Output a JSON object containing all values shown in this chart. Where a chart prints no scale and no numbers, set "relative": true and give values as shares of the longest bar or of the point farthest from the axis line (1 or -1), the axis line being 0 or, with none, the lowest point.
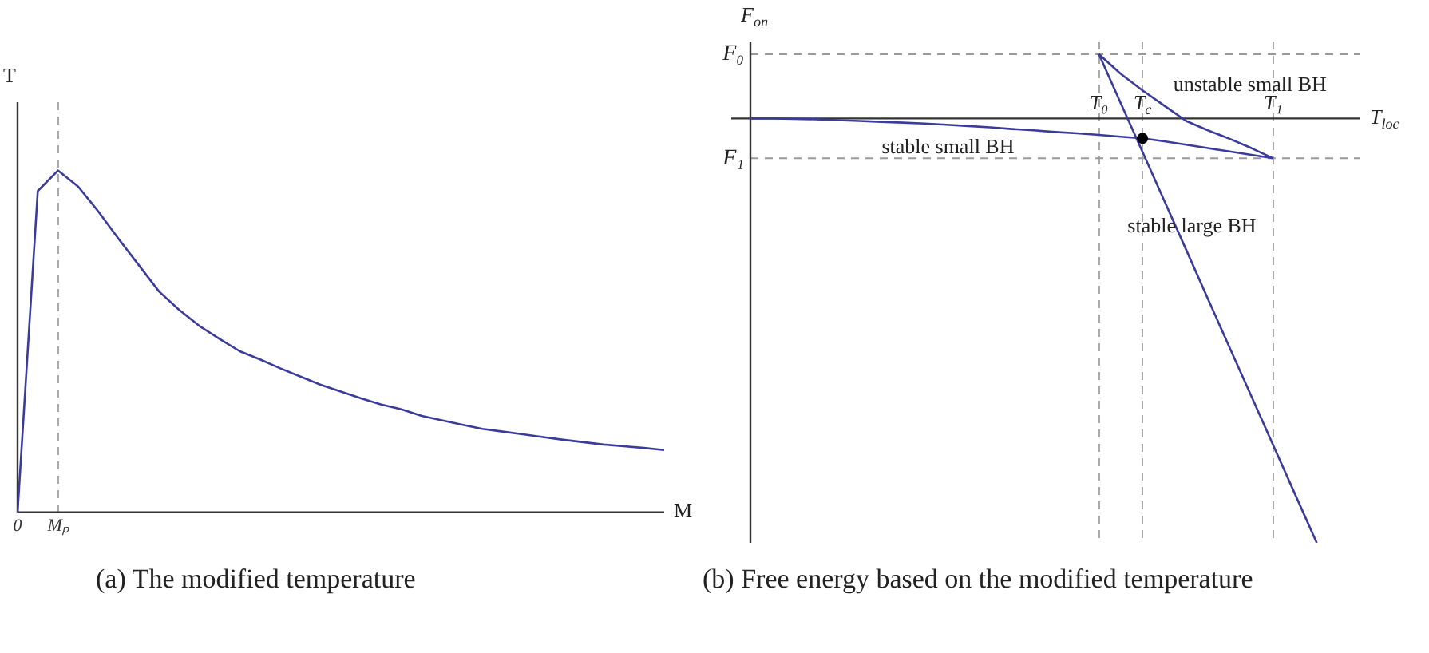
{
  "chart_data": [
    {
      "type": "line",
      "relative": true,
      "xlabel": "M",
      "ylabel": "T",
      "categories": [
        "0",
        null,
        "Mₚ",
        null,
        null,
        null,
        null,
        null,
        null,
        null,
        null,
        null,
        null,
        null,
        null,
        null,
        null,
        null,
        null,
        null,
        null,
        null,
        null,
        null,
        null,
        null,
        null,
        null,
        null,
        null,
        null,
        null,
        null
      ],
      "tick_labels": "x",
      "grid": "x",
      "legend": false,
      "marker": "none",
      "line_style": "solid",
      "series": [
        {
          "color": "#3b3b9c",
          "values": [
            0,
            0.94,
            1,
            0.953,
            0.88,
            0.8,
            0.723,
            0.646,
            0.592,
            0.545,
            0.507,
            0.471,
            0.447,
            0.421,
            0.397,
            0.373,
            0.353,
            0.333,
            0.315,
            0.301,
            0.282,
            0.269,
            0.256,
            0.244,
            0.236,
            0.228,
            0.22,
            0.212,
            0.205,
            0.198,
            0.193,
            0.188,
            0.182
          ]
        }
      ],
      "annotations": [
        "(a) The modified temperature"
      ]
    },
    {
      "type": "line",
      "relative": true,
      "xlabel": "T$_{loc}$",
      "ylabel": "F$_{on}$",
      "categories": [
        null,
        null,
        null,
        null,
        null,
        null,
        null,
        null,
        null,
        null,
        null,
        null,
        null,
        null,
        null,
        null,
        "T₀",
        null,
        "T$_{c}$",
        null,
        null,
        null,
        null,
        null,
        "T₁",
        null,
        null,
        null,
        null
      ],
      "tick_labels": "x",
      "grid": "x",
      "legend": false,
      "marker": "none",
      "line_style": "solid",
      "series": [
        {
          "name": "stable small BH",
          "color": "#3b3b9c",
          "values": [
            0,
            0,
            -0.001,
            -0.002,
            -0.004,
            -0.006,
            -0.008,
            -0.01,
            -0.012,
            -0.015,
            -0.018,
            -0.021,
            -0.025,
            -0.028,
            -0.032,
            -0.035,
            -0.039,
            -0.043,
            -0.047,
            -0.054,
            -0.062,
            -0.07,
            -0.078,
            -0.086,
            -0.094,
            null,
            null,
            null,
            null
          ]
        },
        {
          "name": "unstable small BH",
          "color": "#3b3b9c",
          "values": [
            null,
            null,
            null,
            null,
            null,
            null,
            null,
            null,
            null,
            null,
            null,
            null,
            null,
            null,
            null,
            null,
            0.151,
            0.105,
            0.066,
            0.03,
            -0.006,
            -0.028,
            -0.048,
            -0.07,
            -0.094,
            null,
            null,
            null,
            null
          ]
        },
        {
          "name": "stable large BH",
          "color": "#3b3b9c",
          "values": [
            null,
            null,
            null,
            null,
            null,
            null,
            null,
            null,
            null,
            null,
            null,
            null,
            null,
            null,
            null,
            null,
            0.151,
            0.036,
            -0.079,
            -0.194,
            -0.309,
            -0.425,
            -0.54,
            -0.655,
            -0.77,
            -0.885,
            -1,
            null,
            null
          ]
        },
        {
          "type": "scatter",
          "color": "#000000",
          "marker": "circle",
          "values": [
            null,
            null,
            null,
            null,
            null,
            null,
            null,
            null,
            null,
            null,
            null,
            null,
            null,
            null,
            null,
            null,
            null,
            null,
            -0.047,
            null,
            null,
            null,
            null,
            null,
            null,
            null,
            null,
            null,
            null
          ]
        }
      ],
      "ref_lines": [
        {
          "axis": "y",
          "value": 0.151,
          "label": "F₀",
          "color": "#999999",
          "line_style": "dashed"
        },
        {
          "axis": "y",
          "value": -0.094,
          "label": "F₁",
          "color": "#999999",
          "line_style": "dashed"
        }
      ],
      "annotations": [
        "(b) Free energy based on the modified temperature"
      ]
    }
  ]
}
